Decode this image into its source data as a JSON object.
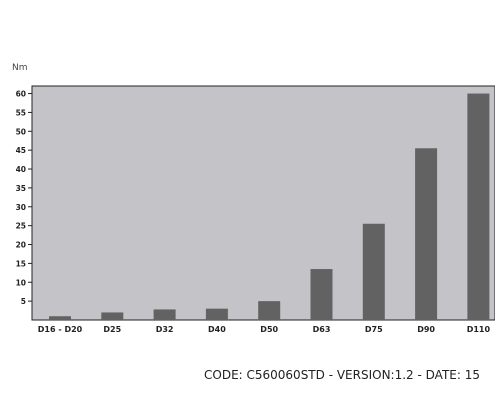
{
  "chart_data": {
    "type": "bar",
    "ylabel": "Nm",
    "xlabel": "",
    "categories": [
      "D16 - D20",
      "D25",
      "D32",
      "D40",
      "D50",
      "D63",
      "D75",
      "D90",
      "D110"
    ],
    "values": [
      1,
      2,
      2.8,
      3,
      5,
      13.5,
      25.5,
      45.5,
      60
    ],
    "yticks": [
      5,
      10,
      15,
      20,
      25,
      30,
      35,
      40,
      45,
      50,
      55,
      60
    ],
    "ylim": [
      0,
      62
    ],
    "grid": false,
    "colors": {
      "plot_background": "#c4c4c8",
      "bar": "#626262",
      "axis": "#222222"
    }
  },
  "footer": {
    "text": "CODE: C560060STD  - VERSION:1.2 - DATE: 15"
  }
}
